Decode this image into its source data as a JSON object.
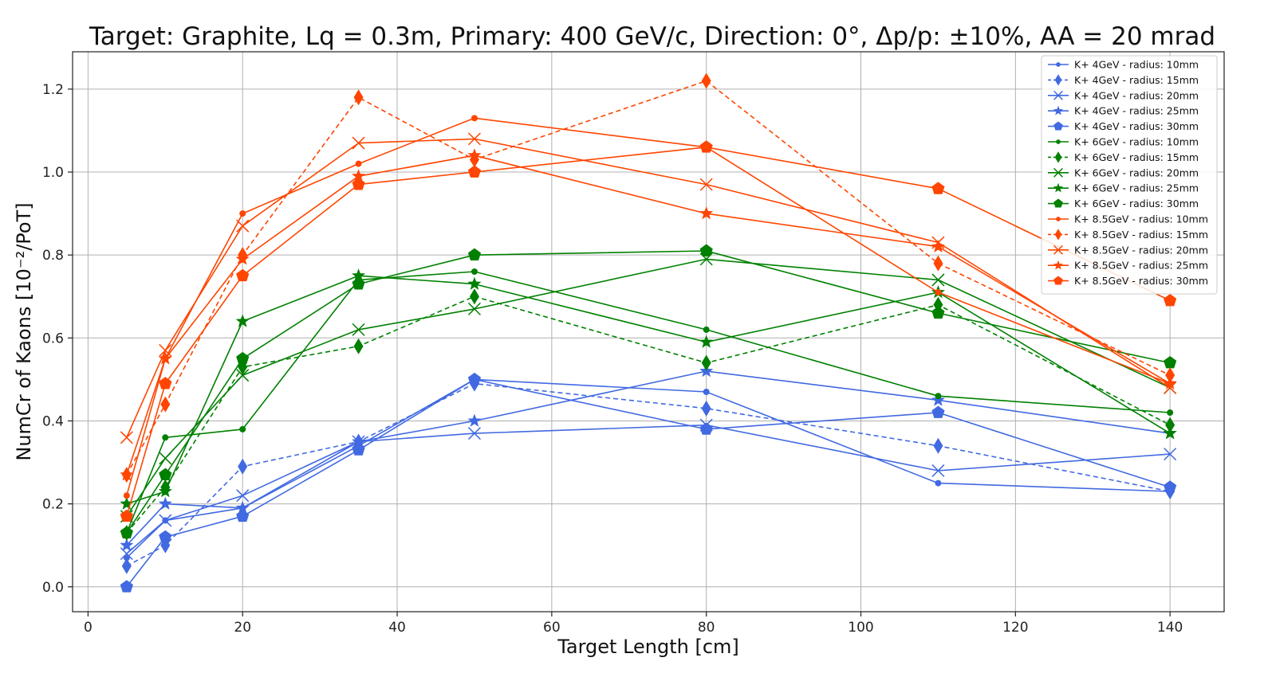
{
  "chart_data": {
    "type": "line",
    "title": "Target: Graphite, Lq = 0.3m, Primary: 400 GeV/c, Direction: 0°, Δp/p: ±10%, AA = 20 mrad",
    "xlabel": "Target Length [cm]",
    "ylabel": "NumCr of Kaons [10⁻²/PoT]",
    "xlim": [
      -2,
      147
    ],
    "ylim": [
      -0.06,
      1.29
    ],
    "xticks": [
      0,
      20,
      40,
      60,
      80,
      100,
      120,
      140
    ],
    "yticks": [
      0.0,
      0.2,
      0.4,
      0.6,
      0.8,
      1.0,
      1.2
    ],
    "xtick_labels": [
      "0",
      "20",
      "40",
      "60",
      "80",
      "100",
      "120",
      "140"
    ],
    "ytick_labels": [
      "0.0",
      "0.2",
      "0.4",
      "0.6",
      "0.8",
      "1.0",
      "1.2"
    ],
    "grid": true,
    "legend_position": "top-right",
    "x": [
      5,
      10,
      20,
      35,
      50,
      80,
      110,
      140
    ],
    "series": [
      {
        "name": "K+ 4GeV - radius: 10mm",
        "color": "#4169e1",
        "marker": "circle",
        "dash": false,
        "values": [
          0.07,
          0.16,
          0.19,
          0.34,
          0.5,
          0.47,
          0.25,
          0.23
        ]
      },
      {
        "name": "K+ 4GeV - radius: 15mm",
        "color": "#4169e1",
        "marker": "thin-diamond",
        "dash": true,
        "values": [
          0.05,
          0.1,
          0.29,
          0.35,
          0.49,
          0.43,
          0.34,
          0.23
        ]
      },
      {
        "name": "K+ 4GeV - radius: 20mm",
        "color": "#4169e1",
        "marker": "x",
        "dash": false,
        "values": [
          0.08,
          0.16,
          0.22,
          0.35,
          0.37,
          0.39,
          0.28,
          0.32
        ]
      },
      {
        "name": "K+ 4GeV - radius: 25mm",
        "color": "#4169e1",
        "marker": "star",
        "dash": false,
        "values": [
          0.1,
          0.2,
          0.19,
          0.35,
          0.4,
          0.52,
          0.45,
          0.37
        ]
      },
      {
        "name": "K+ 4GeV - radius: 30mm",
        "color": "#4169e1",
        "marker": "pentagon",
        "dash": false,
        "values": [
          0.0,
          0.12,
          0.17,
          0.33,
          0.5,
          0.38,
          0.42,
          0.24
        ]
      },
      {
        "name": "K+ 6GeV - radius: 10mm",
        "color": "#008000",
        "marker": "circle",
        "dash": false,
        "values": [
          0.13,
          0.36,
          0.38,
          0.74,
          0.76,
          0.62,
          0.46,
          0.42
        ]
      },
      {
        "name": "K+ 6GeV - radius: 15mm",
        "color": "#008000",
        "marker": "thin-diamond",
        "dash": true,
        "values": [
          0.13,
          0.24,
          0.53,
          0.58,
          0.7,
          0.54,
          0.68,
          0.39
        ]
      },
      {
        "name": "K+ 6GeV - radius: 20mm",
        "color": "#008000",
        "marker": "x",
        "dash": false,
        "values": [
          0.17,
          0.31,
          0.51,
          0.62,
          0.67,
          0.79,
          0.74,
          0.48
        ]
      },
      {
        "name": "K+ 6GeV - radius: 25mm",
        "color": "#008000",
        "marker": "star",
        "dash": false,
        "values": [
          0.2,
          0.23,
          0.64,
          0.75,
          0.73,
          0.59,
          0.71,
          0.37
        ]
      },
      {
        "name": "K+ 6GeV - radius: 30mm",
        "color": "#008000",
        "marker": "pentagon",
        "dash": false,
        "values": [
          0.13,
          0.27,
          0.55,
          0.73,
          0.8,
          0.81,
          0.66,
          0.54
        ]
      },
      {
        "name": "K+ 8.5GeV - radius: 10mm",
        "color": "#ff4500",
        "marker": "circle",
        "dash": false,
        "values": [
          0.22,
          0.55,
          0.9,
          1.02,
          1.13,
          1.06,
          0.71,
          0.49
        ]
      },
      {
        "name": "K+ 8.5GeV - radius: 15mm",
        "color": "#ff4500",
        "marker": "thin-diamond",
        "dash": true,
        "values": [
          0.27,
          0.44,
          0.8,
          1.18,
          1.03,
          1.22,
          0.78,
          0.51
        ]
      },
      {
        "name": "K+ 8.5GeV - radius: 20mm",
        "color": "#ff4500",
        "marker": "x",
        "dash": false,
        "values": [
          0.36,
          0.57,
          0.87,
          1.07,
          1.08,
          0.97,
          0.83,
          0.48
        ]
      },
      {
        "name": "K+ 8.5GeV - radius: 25mm",
        "color": "#ff4500",
        "marker": "star",
        "dash": false,
        "values": [
          0.27,
          0.55,
          0.79,
          0.99,
          1.04,
          0.9,
          0.82,
          0.49
        ]
      },
      {
        "name": "K+ 8.5GeV - radius: 30mm",
        "color": "#ff4500",
        "marker": "pentagon",
        "dash": false,
        "values": [
          0.17,
          0.49,
          0.75,
          0.97,
          1.0,
          1.06,
          0.96,
          0.69
        ]
      }
    ]
  }
}
